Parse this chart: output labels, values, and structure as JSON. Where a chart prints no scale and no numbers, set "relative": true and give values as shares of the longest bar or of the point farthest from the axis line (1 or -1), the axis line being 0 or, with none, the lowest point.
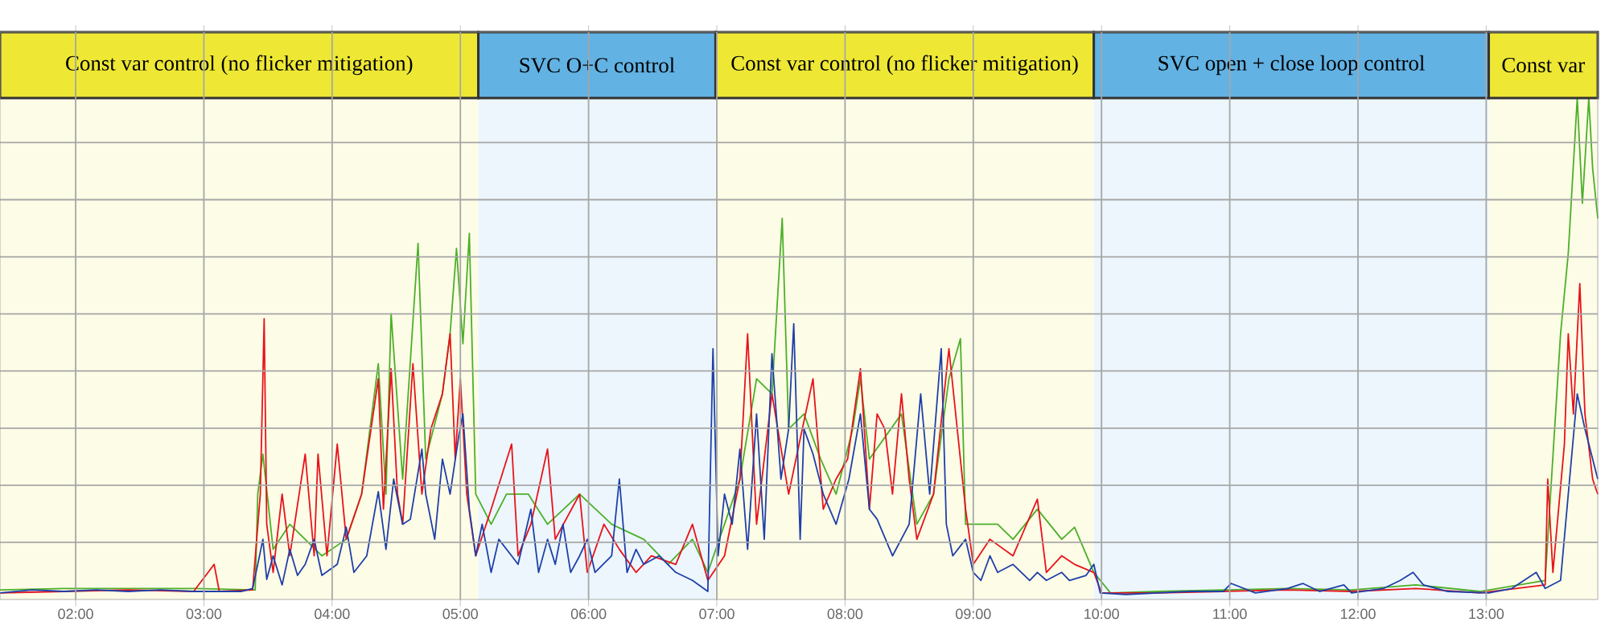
{
  "chart_data": {
    "type": "line",
    "relative": true,
    "grid": true,
    "marker": "none",
    "line_style": "solid",
    "tick_labels": "x",
    "xlim": [
      1.41,
      13.87
    ],
    "xticks": [
      {
        "value": 2,
        "label": "02:00"
      },
      {
        "value": 3,
        "label": "03:00"
      },
      {
        "value": 4,
        "label": "04:00"
      },
      {
        "value": 5,
        "label": "05:00"
      },
      {
        "value": 6,
        "label": "06:00"
      },
      {
        "value": 7,
        "label": "07:00"
      },
      {
        "value": 8,
        "label": "08:00"
      },
      {
        "value": 9,
        "label": "09:00"
      },
      {
        "value": 10,
        "label": "10:00"
      },
      {
        "value": 11,
        "label": "11:00"
      },
      {
        "value": 12,
        "label": "12:00"
      },
      {
        "value": 13,
        "label": "13:00"
      }
    ],
    "bands": [
      {
        "axis": "x",
        "from": 1.41,
        "to": 5.14,
        "label": "Const var control (no flicker mitigation)"
      },
      {
        "axis": "x",
        "from": 5.14,
        "to": 6.99,
        "label": "SVC O+C control"
      },
      {
        "axis": "x",
        "from": 6.99,
        "to": 9.94,
        "label": "Const var control (no flicker mitigation)"
      },
      {
        "axis": "x",
        "from": 9.94,
        "to": 13.02,
        "label": "SVC open + close loop control"
      },
      {
        "axis": "x",
        "from": 13.02,
        "to": 13.87,
        "label": "Const var"
      }
    ],
    "series": [
      {
        "color": "#4caf28",
        "x": [
          1.41,
          1.91,
          2.41,
          2.92,
          3.4,
          3.42,
          3.46,
          3.54,
          3.67,
          3.92,
          4.11,
          4.23,
          4.36,
          4.42,
          4.46,
          4.55,
          4.67,
          4.73,
          4.86,
          4.92,
          4.97,
          5.02,
          5.07,
          5.12,
          5.24,
          5.36,
          5.53,
          5.68,
          5.93,
          6.18,
          6.43,
          6.62,
          6.81,
          6.93,
          7.06,
          7.18,
          7.31,
          7.43,
          7.51,
          7.56,
          7.68,
          7.81,
          7.93,
          8.06,
          8.12,
          8.19,
          8.44,
          8.56,
          8.69,
          8.81,
          8.9,
          8.94,
          9.19,
          9.31,
          9.5,
          9.69,
          9.79,
          9.94,
          10.07,
          10.44,
          10.95,
          11.45,
          11.95,
          12.45,
          12.95,
          13.46,
          13.58,
          13.64,
          13.71,
          13.75,
          13.8,
          13.83,
          13.87
        ],
        "values": [
          0.019,
          0.022,
          0.022,
          0.022,
          0.019,
          0.21,
          0.29,
          0.1,
          0.15,
          0.087,
          0.12,
          0.21,
          0.47,
          0.21,
          0.57,
          0.24,
          0.71,
          0.28,
          0.41,
          0.53,
          0.7,
          0.51,
          0.73,
          0.21,
          0.15,
          0.21,
          0.21,
          0.15,
          0.21,
          0.15,
          0.12,
          0.07,
          0.12,
          0.054,
          0.15,
          0.24,
          0.44,
          0.41,
          0.76,
          0.34,
          0.37,
          0.28,
          0.21,
          0.34,
          0.44,
          0.28,
          0.37,
          0.15,
          0.21,
          0.44,
          0.52,
          0.15,
          0.15,
          0.12,
          0.18,
          0.12,
          0.144,
          0.054,
          0.013,
          0.016,
          0.019,
          0.022,
          0.019,
          0.029,
          0.016,
          0.038,
          0.53,
          0.69,
          1.0,
          0.79,
          1.0,
          0.86,
          0.76
        ]
      },
      {
        "color": "#e8121a",
        "x": [
          1.41,
          1.91,
          2.41,
          2.92,
          3.08,
          3.12,
          3.38,
          3.44,
          3.47,
          3.49,
          3.54,
          3.61,
          3.67,
          3.79,
          3.86,
          3.89,
          3.96,
          4.04,
          4.11,
          4.23,
          4.36,
          4.4,
          4.46,
          4.51,
          4.55,
          4.63,
          4.7,
          4.77,
          4.86,
          4.92,
          4.96,
          5.0,
          5.05,
          5.12,
          5.24,
          5.4,
          5.45,
          5.55,
          5.68,
          5.74,
          5.93,
          5.99,
          6.12,
          6.24,
          6.37,
          6.49,
          6.68,
          6.81,
          6.93,
          7.06,
          7.18,
          7.24,
          7.31,
          7.43,
          7.56,
          7.65,
          7.75,
          7.83,
          7.93,
          8.02,
          8.12,
          8.19,
          8.25,
          8.31,
          8.37,
          8.44,
          8.5,
          8.56,
          8.69,
          8.81,
          8.94,
          9.0,
          9.13,
          9.31,
          9.5,
          9.57,
          9.69,
          9.79,
          9.94,
          10.0,
          10.44,
          10.95,
          11.45,
          11.95,
          12.45,
          12.95,
          13.46,
          13.48,
          13.52,
          13.61,
          13.64,
          13.68,
          13.73,
          13.77,
          13.83,
          13.87
        ],
        "values": [
          0.013,
          0.016,
          0.019,
          0.016,
          0.07,
          0.016,
          0.019,
          0.21,
          0.56,
          0.15,
          0.054,
          0.21,
          0.087,
          0.29,
          0.087,
          0.29,
          0.087,
          0.31,
          0.12,
          0.21,
          0.44,
          0.18,
          0.46,
          0.21,
          0.15,
          0.47,
          0.21,
          0.34,
          0.41,
          0.53,
          0.28,
          0.44,
          0.21,
          0.087,
          0.18,
          0.31,
          0.087,
          0.15,
          0.3,
          0.12,
          0.21,
          0.054,
          0.15,
          0.1,
          0.054,
          0.087,
          0.07,
          0.15,
          0.038,
          0.087,
          0.24,
          0.53,
          0.15,
          0.41,
          0.21,
          0.32,
          0.44,
          0.18,
          0.24,
          0.28,
          0.46,
          0.18,
          0.37,
          0.34,
          0.21,
          0.41,
          0.24,
          0.12,
          0.21,
          0.5,
          0.18,
          0.07,
          0.12,
          0.087,
          0.2,
          0.054,
          0.087,
          0.07,
          0.054,
          0.013,
          0.013,
          0.016,
          0.019,
          0.016,
          0.022,
          0.013,
          0.029,
          0.24,
          0.054,
          0.31,
          0.53,
          0.37,
          0.63,
          0.37,
          0.24,
          0.21
        ]
      },
      {
        "color": "#1f3fa8",
        "x": [
          1.41,
          1.66,
          1.91,
          2.16,
          2.41,
          2.66,
          2.92,
          3.29,
          3.38,
          3.42,
          3.46,
          3.49,
          3.54,
          3.61,
          3.67,
          3.73,
          3.79,
          3.86,
          3.92,
          4.04,
          4.11,
          4.17,
          4.27,
          4.36,
          4.42,
          4.48,
          4.55,
          4.61,
          4.7,
          4.73,
          4.8,
          4.86,
          4.92,
          4.99,
          5.02,
          5.07,
          5.12,
          5.17,
          5.24,
          5.3,
          5.4,
          5.45,
          5.55,
          5.61,
          5.68,
          5.74,
          5.8,
          5.86,
          5.93,
          5.99,
          6.05,
          6.18,
          6.24,
          6.3,
          6.37,
          6.43,
          6.55,
          6.68,
          6.81,
          6.93,
          6.97,
          7.01,
          7.06,
          7.12,
          7.18,
          7.24,
          7.31,
          7.37,
          7.43,
          7.5,
          7.56,
          7.6,
          7.65,
          7.68,
          7.75,
          7.83,
          7.93,
          8.03,
          8.12,
          8.19,
          8.25,
          8.37,
          8.5,
          8.59,
          8.66,
          8.75,
          8.79,
          8.84,
          8.94,
          9.0,
          9.06,
          9.13,
          9.19,
          9.31,
          9.44,
          9.5,
          9.57,
          9.69,
          9.75,
          9.88,
          9.94,
          9.99,
          10.19,
          10.44,
          10.69,
          10.95,
          11.01,
          11.2,
          11.45,
          11.57,
          11.7,
          11.89,
          11.95,
          12.2,
          12.33,
          12.43,
          12.51,
          12.7,
          13.02,
          13.2,
          13.39,
          13.46,
          13.58,
          13.64,
          13.71,
          13.77,
          13.83,
          13.87
        ],
        "values": [
          0.013,
          0.019,
          0.016,
          0.019,
          0.016,
          0.019,
          0.016,
          0.016,
          0.022,
          0.07,
          0.12,
          0.04,
          0.087,
          0.029,
          0.1,
          0.048,
          0.07,
          0.12,
          0.048,
          0.07,
          0.144,
          0.054,
          0.087,
          0.215,
          0.1,
          0.24,
          0.15,
          0.16,
          0.3,
          0.21,
          0.12,
          0.28,
          0.21,
          0.33,
          0.37,
          0.18,
          0.087,
          0.15,
          0.054,
          0.12,
          0.087,
          0.07,
          0.18,
          0.054,
          0.12,
          0.07,
          0.15,
          0.054,
          0.087,
          0.12,
          0.054,
          0.087,
          0.24,
          0.054,
          0.1,
          0.07,
          0.087,
          0.054,
          0.038,
          0.016,
          0.5,
          0.087,
          0.21,
          0.15,
          0.3,
          0.1,
          0.37,
          0.12,
          0.49,
          0.24,
          0.34,
          0.55,
          0.12,
          0.34,
          0.29,
          0.21,
          0.15,
          0.24,
          0.37,
          0.18,
          0.16,
          0.087,
          0.15,
          0.41,
          0.21,
          0.5,
          0.15,
          0.087,
          0.12,
          0.054,
          0.038,
          0.087,
          0.054,
          0.07,
          0.038,
          0.054,
          0.038,
          0.054,
          0.038,
          0.048,
          0.07,
          0.013,
          0.01,
          0.013,
          0.016,
          0.016,
          0.032,
          0.013,
          0.022,
          0.032,
          0.016,
          0.029,
          0.013,
          0.022,
          0.038,
          0.054,
          0.029,
          0.016,
          0.013,
          0.022,
          0.054,
          0.022,
          0.038,
          0.21,
          0.41,
          0.34,
          0.28,
          0.24
        ]
      }
    ]
  }
}
